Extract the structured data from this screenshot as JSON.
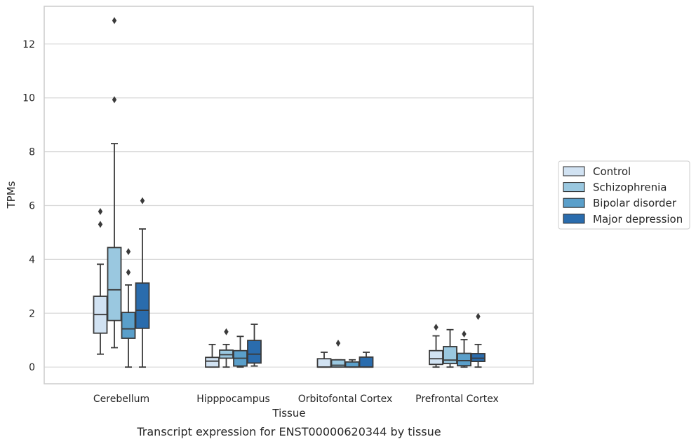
{
  "caption": "Transcript expression for ENST00000620344 by tissue",
  "chart_data": {
    "type": "box",
    "xlabel": "Tissue",
    "ylabel": "TPMs",
    "ylim": [
      -0.62,
      13.4
    ],
    "yticks": [
      0,
      2,
      4,
      6,
      8,
      10,
      12
    ],
    "grid": "horizontal",
    "legend_position": "right",
    "categories": [
      "Cerebellum",
      "Hipppocampus",
      "Orbitofontal Cortex",
      "Prefrontal Cortex"
    ],
    "series": [
      {
        "name": "Control",
        "color": "#d1e2f2",
        "boxes": [
          {
            "whisker_low": 0.48,
            "q1": 1.26,
            "median": 1.95,
            "q3": 2.63,
            "whisker_high": 3.82,
            "outliers": [
              5.3,
              5.78
            ]
          },
          {
            "whisker_low": 0.0,
            "q1": 0.0,
            "median": 0.22,
            "q3": 0.36,
            "whisker_high": 0.84,
            "outliers": []
          },
          {
            "whisker_low": 0.0,
            "q1": 0.0,
            "median": 0.0,
            "q3": 0.31,
            "whisker_high": 0.55,
            "outliers": []
          },
          {
            "whisker_low": 0.0,
            "q1": 0.1,
            "median": 0.31,
            "q3": 0.61,
            "whisker_high": 1.16,
            "outliers": [
              1.48
            ]
          }
        ]
      },
      {
        "name": "Schizophrenia",
        "color": "#9ac8e0",
        "boxes": [
          {
            "whisker_low": 0.72,
            "q1": 1.73,
            "median": 2.87,
            "q3": 4.44,
            "whisker_high": 8.3,
            "outliers": [
              9.93,
              12.87
            ]
          },
          {
            "whisker_low": 0.0,
            "q1": 0.33,
            "median": 0.46,
            "q3": 0.63,
            "whisker_high": 0.84,
            "outliers": [
              1.31
            ]
          },
          {
            "whisker_low": 0.0,
            "q1": 0.0,
            "median": 0.07,
            "q3": 0.27,
            "whisker_high": 0.27,
            "outliers": [
              0.89
            ]
          },
          {
            "whisker_low": 0.0,
            "q1": 0.13,
            "median": 0.26,
            "q3": 0.76,
            "whisker_high": 1.39,
            "outliers": []
          }
        ]
      },
      {
        "name": "Bipolar disorder",
        "color": "#5a9fca",
        "boxes": [
          {
            "whisker_low": 0.0,
            "q1": 1.07,
            "median": 1.42,
            "q3": 2.03,
            "whisker_high": 3.05,
            "outliers": [
              3.52,
              4.29
            ]
          },
          {
            "whisker_low": 0.0,
            "q1": 0.04,
            "median": 0.33,
            "q3": 0.61,
            "whisker_high": 1.14,
            "outliers": []
          },
          {
            "whisker_low": 0.0,
            "q1": 0.0,
            "median": 0.0,
            "q3": 0.19,
            "whisker_high": 0.27,
            "outliers": []
          },
          {
            "whisker_low": 0.0,
            "q1": 0.05,
            "median": 0.24,
            "q3": 0.51,
            "whisker_high": 1.02,
            "outliers": [
              1.23
            ]
          }
        ]
      },
      {
        "name": "Major depression",
        "color": "#2a6cad",
        "boxes": [
          {
            "whisker_low": 0.0,
            "q1": 1.44,
            "median": 2.11,
            "q3": 3.12,
            "whisker_high": 5.13,
            "outliers": [
              6.18
            ]
          },
          {
            "whisker_low": 0.04,
            "q1": 0.15,
            "median": 0.48,
            "q3": 0.99,
            "whisker_high": 1.59,
            "outliers": []
          },
          {
            "whisker_low": 0.0,
            "q1": 0.0,
            "median": 0.0,
            "q3": 0.37,
            "whisker_high": 0.55,
            "outliers": []
          },
          {
            "whisker_low": 0.0,
            "q1": 0.21,
            "median": 0.33,
            "q3": 0.5,
            "whisker_high": 0.84,
            "outliers": [
              1.88
            ]
          }
        ]
      }
    ]
  }
}
